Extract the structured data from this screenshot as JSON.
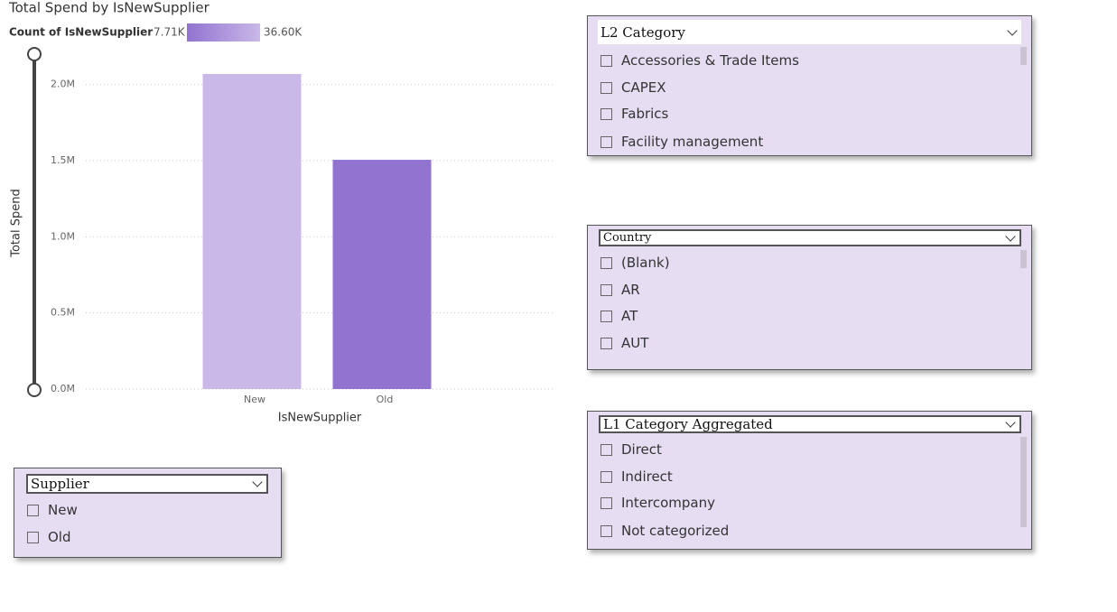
{
  "chart_data": {
    "type": "bar",
    "title": "Total Spend by IsNewSupplier",
    "x_label": "IsNewSupplier",
    "y_label": "Total Spend",
    "categories": [
      "New",
      "Old"
    ],
    "values": [
      2070000,
      1506000
    ],
    "colors": [
      "#c9b8e8",
      "#9373d0"
    ],
    "ylim": [
      0,
      2200000
    ],
    "yticks": [
      {
        "value": 0,
        "label": "0.0M"
      },
      {
        "value": 500000,
        "label": "0.5M"
      },
      {
        "value": 1000000,
        "label": "1.0M"
      },
      {
        "value": 1500000,
        "label": "1.5M"
      },
      {
        "value": 2000000,
        "label": "2.0M"
      }
    ],
    "grid": true,
    "color_legend": {
      "title": "Count of IsNewSupplier",
      "min_label": "7.71K",
      "max_label": "36.60K",
      "min_color": "#9373d0",
      "max_color": "#c9b8e8"
    }
  },
  "slicers": [
    {
      "title": "L2 Category",
      "items": [
        "Accessories & Trade Items",
        "CAPEX",
        "Fabrics",
        "Facility management"
      ]
    },
    {
      "title": "Country",
      "items": [
        "(Blank)",
        "AR",
        "AT",
        "AUT"
      ]
    },
    {
      "title": "L1 Category Aggregated",
      "items": [
        "Direct",
        "Indirect",
        "Intercompany",
        "Not categorized"
      ]
    },
    {
      "title": "Supplier",
      "items": [
        "New",
        "Old"
      ]
    }
  ]
}
